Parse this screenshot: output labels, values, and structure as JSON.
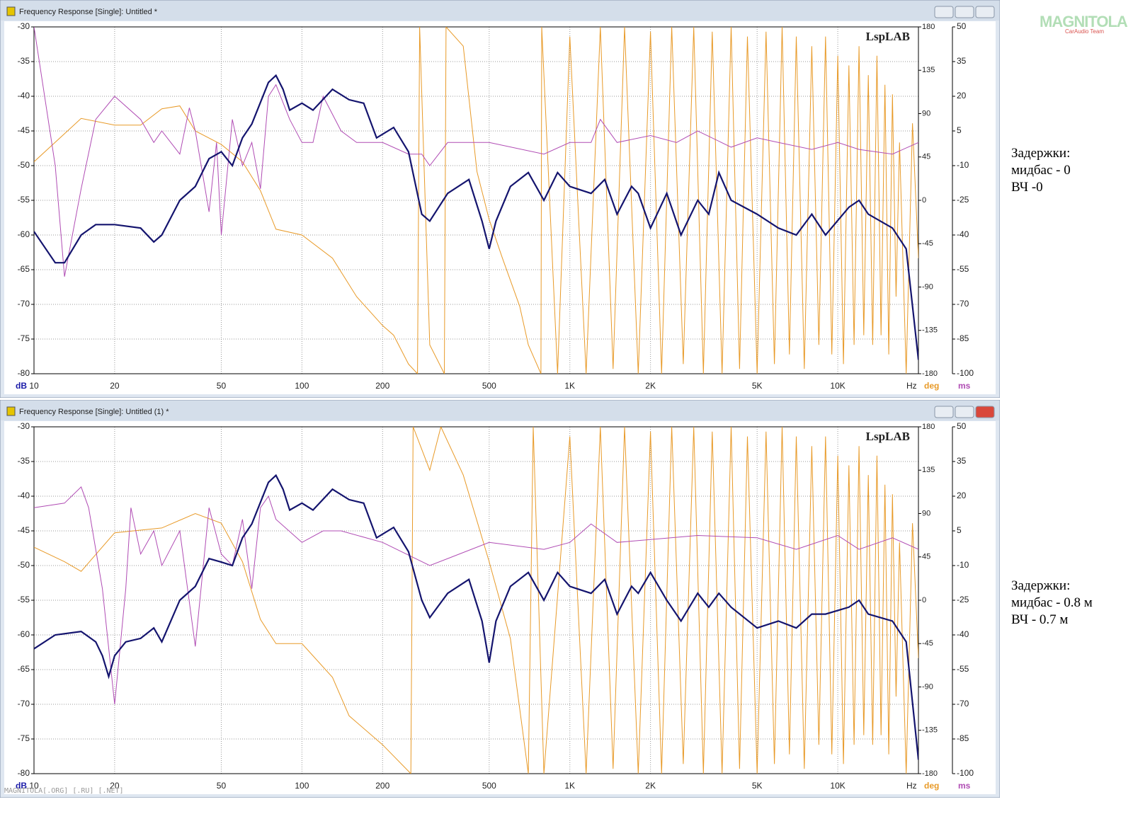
{
  "logo": {
    "name": "MAGNITOLA",
    "team": "CarAudio Team"
  },
  "watermark": "MAGNITOLA[.ORG] [.RU] [.NET]",
  "notes": [
    [
      "Задержки:",
      "мидбас - 0",
      "ВЧ -0"
    ],
    [
      "Задержки:",
      "мидбас - 0.8 м",
      "ВЧ - 0.7 м"
    ]
  ],
  "chart_data": [
    {
      "type": "line",
      "window_title": "Frequency Response [Single]: Untitled *",
      "logo": "LspLAB",
      "x_unit": "Hz",
      "y_unit": "dB",
      "y2_unit": "deg",
      "y3_unit": "ms",
      "xscale": "log",
      "grid": true,
      "xlim": [
        10,
        20000
      ],
      "ylim": [
        -80,
        -30
      ],
      "y2lim": [
        -180,
        180
      ],
      "y3lim": [
        -100,
        50
      ],
      "xticks": [
        10,
        20,
        50,
        100,
        200,
        500,
        {
          "value": 1000,
          "label": "1K"
        },
        {
          "value": 2000,
          "label": "2K"
        },
        {
          "value": 5000,
          "label": "5K"
        },
        {
          "value": 10000,
          "label": "10K"
        }
      ],
      "yticks": [
        -30,
        -35,
        -40,
        -45,
        -50,
        -55,
        -60,
        -65,
        -70,
        -75,
        -80
      ],
      "y2ticks": [
        180,
        135,
        90,
        45,
        0,
        -45,
        -90,
        -135,
        -180
      ],
      "y3ticks": [
        50,
        35,
        20,
        5,
        -10,
        -25,
        -40,
        -55,
        -70,
        -85,
        -100
      ],
      "series": [
        {
          "name": "Phase",
          "axis": "y2",
          "color": "#e89a28",
          "x": [
            10,
            15,
            20,
            25,
            30,
            35,
            40,
            50,
            60,
            70,
            80,
            100,
            130,
            160,
            200,
            220,
            250,
            270,
            275,
            300,
            340,
            345,
            400,
            450,
            500,
            560,
            650,
            700,
            780,
            785,
            900,
            1000,
            1150,
            1300,
            1450,
            1600,
            1800,
            2000,
            2200,
            2400,
            2650,
            2900,
            3150,
            3400,
            3700,
            4000,
            4300,
            4600,
            5000,
            5400,
            5800,
            6200,
            6600,
            7000,
            7500,
            8000,
            8500,
            9000,
            9500,
            10000,
            10500,
            11000,
            11500,
            12000,
            12500,
            13000,
            13500,
            14000,
            14500,
            15000,
            15500,
            16000,
            16500,
            17000,
            18000,
            19000,
            20000
          ],
          "values": [
            40,
            85,
            78,
            78,
            95,
            98,
            72,
            58,
            40,
            10,
            -30,
            -36,
            -60,
            -100,
            -130,
            -140,
            -170,
            -180,
            180,
            -150,
            -180,
            180,
            160,
            30,
            -20,
            -60,
            -110,
            -150,
            -180,
            180,
            -180,
            170,
            -180,
            180,
            -175,
            180,
            -180,
            175,
            -180,
            180,
            -170,
            180,
            -180,
            175,
            -180,
            180,
            -175,
            170,
            -180,
            175,
            -170,
            180,
            -160,
            170,
            -175,
            160,
            -150,
            170,
            -160,
            150,
            -170,
            140,
            -150,
            160,
            -140,
            130,
            -150,
            150,
            -140,
            120,
            -160,
            110,
            -100,
            60,
            -180,
            80,
            -60
          ]
        },
        {
          "name": "Group delay",
          "axis": "y3",
          "color": "#b04cb4",
          "x": [
            10,
            12,
            13,
            15,
            17,
            20,
            25,
            28,
            30,
            35,
            38,
            40,
            45,
            48,
            50,
            55,
            60,
            65,
            70,
            75,
            80,
            90,
            100,
            110,
            120,
            140,
            160,
            200,
            250,
            280,
            300,
            350,
            500,
            800,
            1000,
            1200,
            1300,
            1500,
            2000,
            2500,
            3000,
            4000,
            5000,
            6000,
            8000,
            10000,
            12000,
            16000,
            20000
          ],
          "values": [
            50,
            -10,
            -58,
            -20,
            10,
            20,
            10,
            0,
            5,
            -5,
            15,
            5,
            -30,
            0,
            -40,
            10,
            -10,
            0,
            -20,
            20,
            25,
            10,
            0,
            0,
            20,
            5,
            0,
            0,
            -5,
            -5,
            -10,
            0,
            0,
            -5,
            0,
            0,
            10,
            0,
            3,
            0,
            5,
            -2,
            2,
            0,
            -3,
            0,
            -3,
            -5,
            0
          ]
        },
        {
          "name": "Magnitude",
          "axis": "y",
          "color": "#14146e",
          "x": [
            10,
            12,
            13,
            15,
            17,
            20,
            25,
            28,
            30,
            35,
            40,
            45,
            50,
            55,
            60,
            65,
            75,
            80,
            85,
            90,
            100,
            110,
            130,
            150,
            170,
            190,
            220,
            250,
            280,
            300,
            350,
            420,
            470,
            500,
            530,
            600,
            700,
            800,
            900,
            1000,
            1200,
            1350,
            1500,
            1700,
            1800,
            2000,
            2300,
            2600,
            3000,
            3300,
            3600,
            4000,
            5000,
            6000,
            7000,
            8000,
            9000,
            11000,
            12000,
            13000,
            16000,
            18000,
            20000
          ],
          "values": [
            -59.5,
            -64,
            -64,
            -60,
            -58.5,
            -58.5,
            -59,
            -61,
            -60,
            -55,
            -53,
            -49,
            -48,
            -50,
            -46,
            -44,
            -38,
            -37,
            -39,
            -42,
            -41,
            -42,
            -39,
            -40.5,
            -41,
            -46,
            -44.5,
            -48,
            -57,
            -58,
            -54,
            -52,
            -58,
            -62,
            -58,
            -53,
            -51,
            -55,
            -51,
            -53,
            -54,
            -52,
            -57,
            -53,
            -54,
            -59,
            -54,
            -60,
            -55,
            -57,
            -51,
            -55,
            -57,
            -59,
            -60,
            -57,
            -60,
            -56,
            -55,
            -57,
            -59,
            -62,
            -78
          ]
        }
      ]
    },
    {
      "type": "line",
      "window_title": "Frequency Response [Single]: Untitled (1) *",
      "logo": "LspLAB",
      "x_unit": "Hz",
      "y_unit": "dB",
      "y2_unit": "deg",
      "y3_unit": "ms",
      "xscale": "log",
      "grid": true,
      "xlim": [
        10,
        20000
      ],
      "ylim": [
        -80,
        -30
      ],
      "y2lim": [
        -180,
        180
      ],
      "y3lim": [
        -100,
        50
      ],
      "xticks": [
        10,
        20,
        50,
        100,
        200,
        500,
        {
          "value": 1000,
          "label": "1K"
        },
        {
          "value": 2000,
          "label": "2K"
        },
        {
          "value": 5000,
          "label": "5K"
        },
        {
          "value": 10000,
          "label": "10K"
        }
      ],
      "yticks": [
        -30,
        -35,
        -40,
        -45,
        -50,
        -55,
        -60,
        -65,
        -70,
        -75,
        -80
      ],
      "y2ticks": [
        180,
        135,
        90,
        45,
        0,
        -45,
        -90,
        -135,
        -180
      ],
      "y3ticks": [
        50,
        35,
        20,
        5,
        -10,
        -25,
        -40,
        -55,
        -70,
        -85,
        -100
      ],
      "series": [
        {
          "name": "Phase",
          "axis": "y2",
          "color": "#e89a28",
          "x": [
            10,
            13,
            15,
            20,
            30,
            40,
            50,
            60,
            70,
            80,
            100,
            130,
            150,
            200,
            255,
            260,
            300,
            330,
            400,
            500,
            600,
            700,
            730,
            800,
            1000,
            1150,
            1300,
            1450,
            1600,
            1800,
            2000,
            2200,
            2400,
            2650,
            2900,
            3150,
            3400,
            3700,
            4000,
            4300,
            4600,
            5000,
            5400,
            5800,
            6200,
            6600,
            7000,
            7500,
            8000,
            8500,
            9000,
            9500,
            10000,
            10500,
            11000,
            11500,
            12000,
            12500,
            13000,
            13500,
            14000,
            14500,
            15000,
            15500,
            16000,
            16500,
            17000,
            18000,
            19000,
            20000
          ],
          "values": [
            55,
            40,
            30,
            70,
            75,
            90,
            80,
            40,
            -20,
            -45,
            -45,
            -80,
            -120,
            -150,
            -180,
            180,
            135,
            180,
            130,
            40,
            -40,
            -180,
            180,
            -180,
            170,
            -180,
            180,
            -175,
            180,
            -180,
            175,
            -180,
            180,
            -170,
            180,
            -180,
            175,
            -180,
            180,
            -175,
            170,
            -180,
            175,
            -170,
            180,
            -160,
            170,
            -175,
            160,
            -150,
            170,
            -160,
            150,
            -170,
            140,
            -150,
            160,
            -140,
            130,
            -150,
            150,
            -140,
            120,
            -160,
            110,
            -100,
            60,
            -180,
            80,
            -60
          ]
        },
        {
          "name": "Group delay",
          "axis": "y3",
          "color": "#b04cb4",
          "x": [
            10,
            13,
            15,
            16,
            18,
            20,
            22,
            23,
            25,
            28,
            30,
            35,
            40,
            45,
            50,
            55,
            60,
            65,
            70,
            75,
            80,
            100,
            120,
            140,
            200,
            300,
            500,
            800,
            1000,
            1200,
            1500,
            3000,
            5000,
            7000,
            10000,
            12000,
            16000,
            20000
          ],
          "values": [
            15,
            17,
            24,
            15,
            -20,
            -70,
            -20,
            15,
            -5,
            5,
            -10,
            5,
            -45,
            15,
            -5,
            -10,
            10,
            -20,
            15,
            20,
            10,
            0,
            5,
            5,
            0,
            -10,
            0,
            -3,
            0,
            8,
            0,
            3,
            2,
            -3,
            3,
            -3,
            2,
            -3
          ]
        },
        {
          "name": "Magnitude",
          "axis": "y",
          "color": "#14146e",
          "x": [
            10,
            12,
            15,
            17,
            18,
            19,
            20,
            22,
            25,
            28,
            30,
            35,
            40,
            45,
            50,
            55,
            60,
            65,
            75,
            80,
            85,
            90,
            100,
            110,
            130,
            150,
            170,
            190,
            220,
            250,
            280,
            300,
            350,
            420,
            470,
            500,
            530,
            600,
            700,
            800,
            900,
            1000,
            1200,
            1350,
            1500,
            1700,
            1800,
            2000,
            2300,
            2600,
            3000,
            3300,
            3600,
            4000,
            5000,
            6000,
            7000,
            8000,
            9000,
            11000,
            12000,
            13000,
            16000,
            18000,
            20000
          ],
          "values": [
            -62,
            -60,
            -59.5,
            -61,
            -63,
            -66,
            -63,
            -61,
            -60.5,
            -59,
            -61,
            -55,
            -53,
            -49,
            -49.5,
            -50,
            -46,
            -44,
            -38,
            -37,
            -39,
            -42,
            -41,
            -42,
            -39,
            -40.5,
            -41,
            -46,
            -44.5,
            -48,
            -55,
            -57.5,
            -54,
            -52,
            -58,
            -64,
            -58,
            -53,
            -51,
            -55,
            -51,
            -53,
            -54,
            -52,
            -57,
            -53,
            -54,
            -51,
            -55,
            -58,
            -54,
            -56,
            -54,
            -56,
            -59,
            -58,
            -59,
            -57,
            -57,
            -56,
            -55,
            -57,
            -58,
            -61,
            -78
          ]
        }
      ]
    }
  ]
}
